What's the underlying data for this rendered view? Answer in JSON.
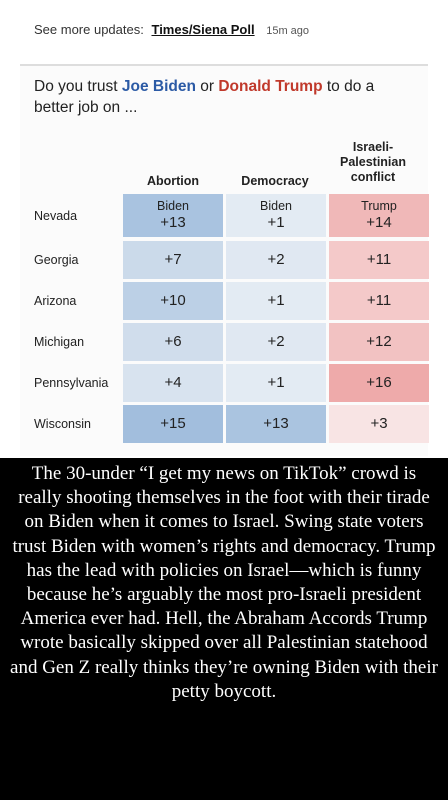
{
  "header": {
    "prefix": "See more updates:",
    "source": "Times/Siena Poll",
    "time": "15m ago"
  },
  "question": {
    "part1": "Do you trust ",
    "biden": "Joe Biden",
    "part2": " or ",
    "trump": "Donald Trump",
    "part3": " to do a better job on ..."
  },
  "table": {
    "columns": [
      "Abortion",
      "Democracy",
      "Israeli-Palestinian conflict"
    ],
    "rows": [
      {
        "state": "Nevada",
        "cells": [
          {
            "lead": "Biden",
            "value": "+13",
            "color": "#a9c3e0"
          },
          {
            "lead": "Biden",
            "value": "+1",
            "color": "#e3ebf3"
          },
          {
            "lead": "Trump",
            "value": "+14",
            "color": "#f0b8b8"
          }
        ]
      },
      {
        "state": "Georgia",
        "cells": [
          {
            "lead": "",
            "value": "+7",
            "color": "#cbdaea"
          },
          {
            "lead": "",
            "value": "+2",
            "color": "#e0e8f2"
          },
          {
            "lead": "",
            "value": "+11",
            "color": "#f4c9c9"
          }
        ]
      },
      {
        "state": "Arizona",
        "cells": [
          {
            "lead": "",
            "value": "+10",
            "color": "#bcd0e6"
          },
          {
            "lead": "",
            "value": "+1",
            "color": "#e3ebf3"
          },
          {
            "lead": "",
            "value": "+11",
            "color": "#f4c9c9"
          }
        ]
      },
      {
        "state": "Michigan",
        "cells": [
          {
            "lead": "",
            "value": "+6",
            "color": "#d0ddec"
          },
          {
            "lead": "",
            "value": "+2",
            "color": "#e0e8f2"
          },
          {
            "lead": "",
            "value": "+12",
            "color": "#f2c2c2"
          }
        ]
      },
      {
        "state": "Pennsylvania",
        "cells": [
          {
            "lead": "",
            "value": "+4",
            "color": "#d8e3ef"
          },
          {
            "lead": "",
            "value": "+1",
            "color": "#e3ebf3"
          },
          {
            "lead": "",
            "value": "+16",
            "color": "#eeaaaa"
          }
        ]
      },
      {
        "state": "Wisconsin",
        "cells": [
          {
            "lead": "",
            "value": "+15",
            "color": "#a2bedd"
          },
          {
            "lead": "",
            "value": "+13",
            "color": "#aac4e0"
          },
          {
            "lead": "",
            "value": "+3",
            "color": "#f8e4e4"
          }
        ]
      }
    ]
  },
  "caption": "The 30-under “I get my news on TikTok” crowd is really shooting themselves in the foot with their tirade on Biden when it comes to Israel. Swing state voters trust Biden with women’s rights and democracy. Trump has the lead with policies on Israel—which is funny because he’s arguably the most pro-Israeli president America ever had. Hell, the Abraham Accords Trump wrote basically skipped over all Palestinian statehood and Gen Z really thinks they’re owning Biden with their petty boycott."
}
